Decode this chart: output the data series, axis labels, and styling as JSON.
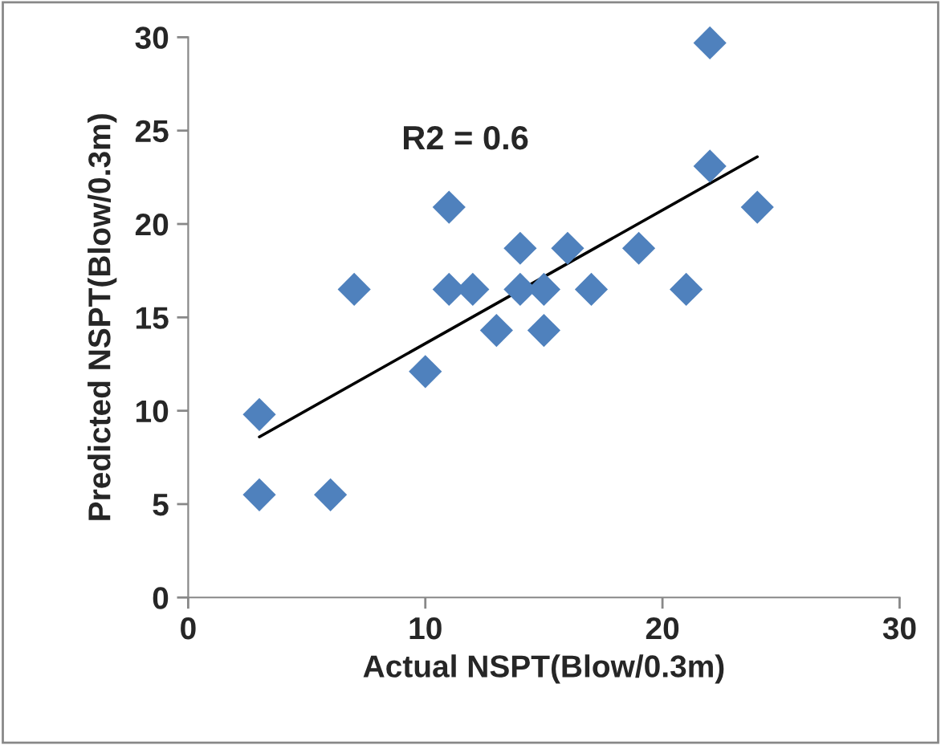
{
  "chart_data": {
    "type": "scatter",
    "xlabel": "Actual NSPT(Blow/0.3m)",
    "ylabel": "Predicted NSPT(Blow/0.3m)",
    "xlim": [
      0,
      30
    ],
    "xticks": [
      0,
      10,
      20,
      30
    ],
    "ylim": [
      0,
      30
    ],
    "yticks": [
      0,
      5,
      10,
      15,
      20,
      25,
      30
    ],
    "grid": false,
    "legend": false,
    "marker": "diamond",
    "annotations": [
      "R2 = 0.6"
    ],
    "series": [
      {
        "color": "#4f81bd",
        "x": [
          3,
          3,
          6,
          7,
          10,
          11,
          11,
          12,
          13,
          14,
          14,
          15,
          15,
          16,
          17,
          19,
          21,
          22,
          22,
          24
        ],
        "values": [
          9.8,
          5.5,
          5.5,
          16.5,
          12.1,
          20.9,
          16.5,
          16.5,
          14.3,
          18.7,
          16.5,
          16.5,
          14.3,
          18.7,
          16.5,
          18.7,
          16.5,
          29.7,
          23.1,
          20.9
        ]
      },
      {
        "type": "line",
        "color": "#000000",
        "x": [
          3,
          24
        ],
        "values": [
          8.6,
          23.6
        ],
        "marker": "none",
        "line_style": "solid"
      }
    ]
  }
}
